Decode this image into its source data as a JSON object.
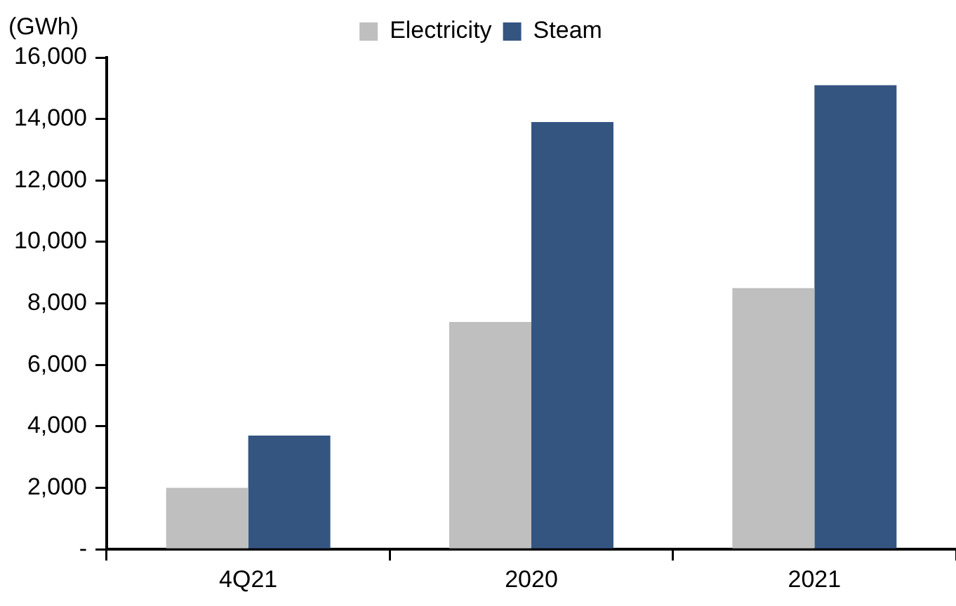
{
  "chart_data": {
    "type": "bar",
    "ylabel": "(GWh)",
    "categories": [
      "4Q21",
      "2020",
      "2021"
    ],
    "series": [
      {
        "name": "Electricity",
        "color": "#bfbfbf",
        "values": [
          2000,
          7400,
          8500
        ]
      },
      {
        "name": "Steam",
        "color": "#355581",
        "values": [
          3700,
          13900,
          15100
        ]
      }
    ],
    "ylim": [
      0,
      16000
    ],
    "yticks": [
      {
        "value": 0,
        "label": "-"
      },
      {
        "value": 2000,
        "label": "2,000"
      },
      {
        "value": 4000,
        "label": "4,000"
      },
      {
        "value": 6000,
        "label": "6,000"
      },
      {
        "value": 8000,
        "label": "8,000"
      },
      {
        "value": 10000,
        "label": "10,000"
      },
      {
        "value": 12000,
        "label": "12,000"
      },
      {
        "value": 14000,
        "label": "14,000"
      },
      {
        "value": 16000,
        "label": "16,000"
      }
    ],
    "grid": false,
    "legend": "top"
  }
}
